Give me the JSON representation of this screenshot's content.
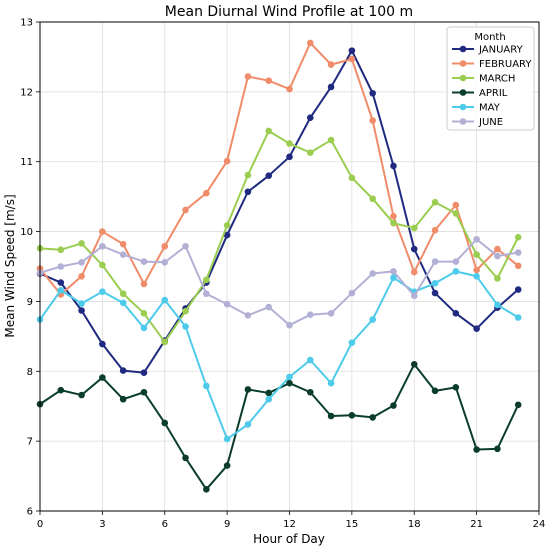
{
  "chart_data": {
    "type": "line",
    "title": "Mean Diurnal Wind Profile at 100 m",
    "xlabel": "Hour of Day",
    "ylabel": "Mean Wind Speed [m/s]",
    "xlim": [
      0,
      24
    ],
    "ylim": [
      6,
      13
    ],
    "xticks": [
      0,
      3,
      6,
      9,
      12,
      15,
      18,
      21,
      24
    ],
    "yticks": [
      6,
      7,
      8,
      9,
      10,
      11,
      12,
      13
    ],
    "grid": true,
    "legend": {
      "title": "Month",
      "placement": "top-right"
    },
    "x": [
      0,
      1,
      2,
      3,
      4,
      5,
      6,
      7,
      8,
      9,
      10,
      11,
      12,
      13,
      14,
      15,
      16,
      17,
      18,
      19,
      20,
      21,
      22,
      23
    ],
    "series": [
      {
        "name": "JANUARY",
        "color": "#1f2a80",
        "values": [
          9.4,
          9.27,
          8.87,
          8.39,
          8.01,
          7.98,
          8.44,
          8.9,
          9.27,
          9.95,
          10.57,
          10.8,
          11.07,
          11.63,
          12.07,
          12.59,
          11.98,
          10.94,
          9.75,
          9.12,
          8.83,
          8.61,
          8.91,
          9.17
        ]
      },
      {
        "name": "FEBRUARY",
        "color": "#f08c6a",
        "values": [
          9.47,
          9.1,
          9.36,
          10.0,
          9.82,
          9.25,
          9.79,
          10.31,
          10.55,
          11.01,
          12.22,
          12.16,
          12.04,
          12.7,
          12.39,
          12.47,
          11.59,
          10.22,
          9.42,
          10.02,
          10.38,
          9.45,
          9.75,
          9.51
        ]
      },
      {
        "name": "MARCH",
        "color": "#9acd50",
        "values": [
          9.76,
          9.74,
          9.83,
          9.52,
          9.11,
          8.83,
          8.42,
          8.86,
          9.31,
          10.09,
          10.81,
          11.44,
          11.26,
          11.13,
          11.31,
          10.77,
          10.47,
          10.12,
          10.05,
          10.42,
          10.26,
          9.67,
          9.33,
          9.92
        ]
      },
      {
        "name": "APRIL",
        "color": "#0b3d2c",
        "values": [
          7.53,
          7.73,
          7.66,
          7.91,
          7.6,
          7.7,
          7.26,
          6.76,
          6.31,
          6.65,
          7.74,
          7.69,
          7.83,
          7.7,
          7.36,
          7.37,
          7.34,
          7.51,
          8.1,
          7.72,
          7.77,
          6.88,
          6.89,
          7.52
        ]
      },
      {
        "name": "MAY",
        "color": "#4ecbea",
        "values": [
          8.74,
          9.16,
          8.97,
          9.14,
          8.98,
          8.62,
          9.02,
          8.64,
          7.79,
          7.03,
          7.24,
          7.6,
          7.92,
          8.16,
          7.83,
          8.41,
          8.74,
          9.34,
          9.14,
          9.26,
          9.43,
          9.36,
          8.95,
          8.77
        ]
      },
      {
        "name": "JUNE",
        "color": "#b3b0d6",
        "values": [
          9.41,
          9.5,
          9.56,
          9.79,
          9.67,
          9.57,
          9.56,
          9.79,
          9.11,
          8.96,
          8.8,
          8.92,
          8.66,
          8.81,
          8.83,
          9.12,
          9.4,
          9.43,
          9.08,
          9.57,
          9.57,
          9.89,
          9.65,
          9.7
        ]
      }
    ]
  }
}
